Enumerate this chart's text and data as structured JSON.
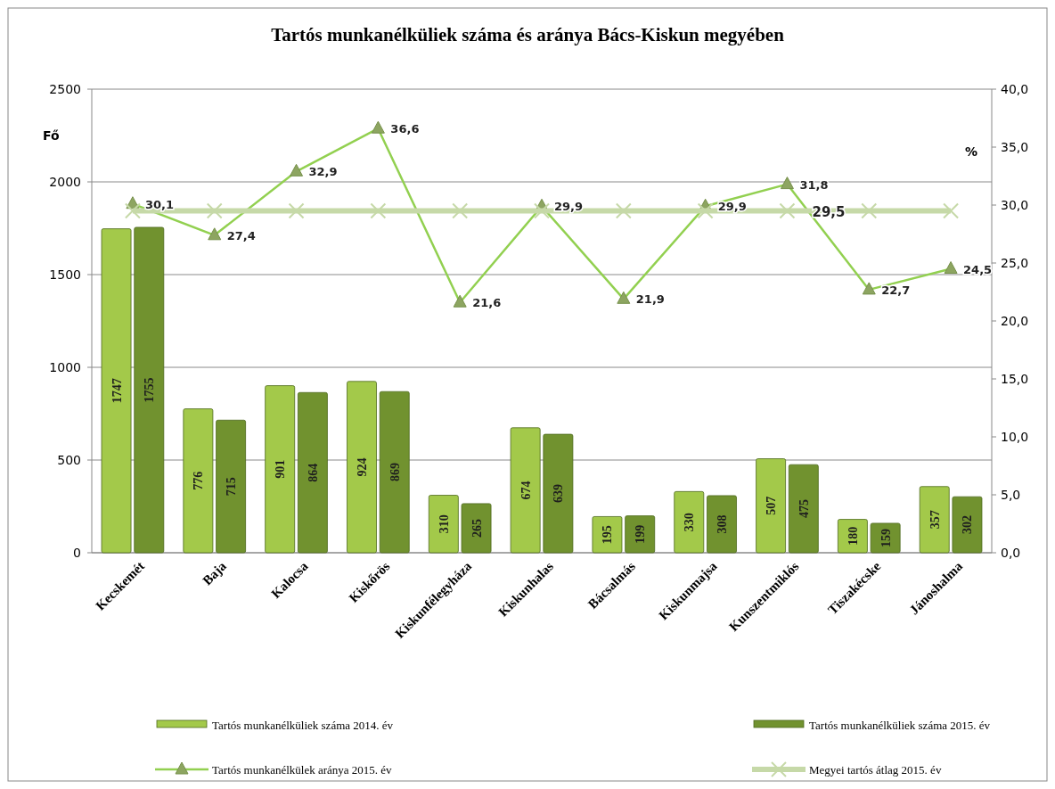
{
  "chart_data": {
    "type": "bar",
    "title": "Tartós munkanélküliek száma és aránya Bács-Kiskun megyében",
    "ylabel": "Fő",
    "y2label": "%",
    "categories": [
      "Kecskemét",
      "Baja",
      "Kalocsa",
      "Kiskőrös",
      "Kiskunfélegyháza",
      "Kiskunhalas",
      "Bácsalmás",
      "Kiskunmajsa",
      "Kunszentmiklós",
      "Tiszakécske",
      "Jánoshalma"
    ],
    "series": [
      {
        "name": "Tartós munkanélküliek  száma 2014. év",
        "color": "#a3c94a",
        "values": [
          1747,
          776,
          901,
          924,
          310,
          674,
          195,
          330,
          507,
          180,
          357
        ],
        "value_labels": [
          "1747",
          "776",
          "901",
          "924",
          "310",
          "674",
          "195",
          "330",
          "507",
          "180",
          "357"
        ]
      },
      {
        "name": "Tartós munkanélküliek  száma 2015. év",
        "color": "#71922f",
        "values": [
          1755,
          715,
          864,
          869,
          265,
          639,
          199,
          308,
          475,
          159,
          302
        ],
        "value_labels": [
          "1755",
          "715",
          "864",
          "869",
          "265",
          "639",
          "199",
          "308",
          "475",
          "159",
          "302"
        ]
      },
      {
        "name": "Tartós munkanélkülek aránya 2015. év",
        "type": "line",
        "axis": "y2",
        "color": "#92d050",
        "marker": "triangle",
        "values": [
          30.1,
          27.4,
          32.9,
          36.6,
          21.6,
          29.9,
          21.9,
          29.9,
          31.8,
          22.7,
          24.5
        ],
        "value_labels": [
          "30,1",
          "27,4",
          "32,9",
          "36,6",
          "21,6",
          "29,9",
          "21,9",
          "29,9",
          "31,8",
          "22,7",
          "24,5"
        ]
      },
      {
        "name": "Megyei tartós átlag 2015. év",
        "type": "line",
        "axis": "y2",
        "color": "#c6d9a8",
        "marker": "cross",
        "values": [
          29.5,
          29.5,
          29.5,
          29.5,
          29.5,
          29.5,
          29.5,
          29.5,
          29.5,
          29.5,
          29.5
        ],
        "value_labels": [
          null,
          null,
          null,
          null,
          null,
          null,
          null,
          null,
          "29,5",
          null,
          null
        ]
      }
    ],
    "ylim": [
      0,
      2500
    ],
    "yticks": [
      0,
      500,
      1000,
      1500,
      2000,
      2500
    ],
    "y2lim": [
      0,
      40
    ],
    "y2ticks": [
      {
        "value": 0,
        "label": "0,0"
      },
      {
        "value": 5,
        "label": "5,0"
      },
      {
        "value": 10,
        "label": "10,0"
      },
      {
        "value": 15,
        "label": "15,0"
      },
      {
        "value": 20,
        "label": "20,0"
      },
      {
        "value": 25,
        "label": "25,0"
      },
      {
        "value": 30,
        "label": "30,0"
      },
      {
        "value": 35,
        "label": "35,0"
      },
      {
        "value": 40,
        "label": "40,0"
      }
    ],
    "grid": "y",
    "legend": "bottom"
  }
}
